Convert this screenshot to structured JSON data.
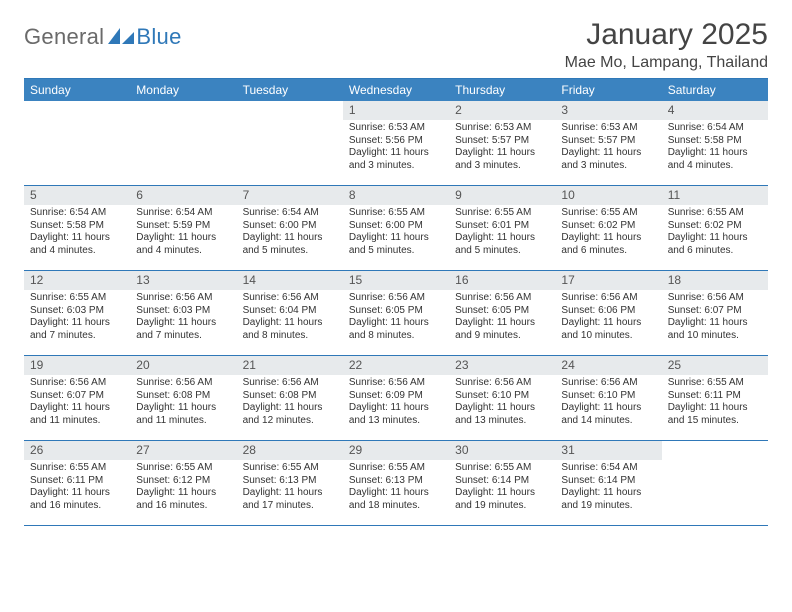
{
  "brand": {
    "general": "General",
    "blue": "Blue"
  },
  "title": {
    "month": "January 2025",
    "location": "Mae Mo, Lampang, Thailand"
  },
  "colors": {
    "accent": "#2f78b8",
    "header_bg": "#3b83c0",
    "header_text": "#ffffff",
    "daynum_bg": "#e7eaec",
    "text": "#333333",
    "logo_gray": "#6a6a6a"
  },
  "weekdays": [
    "Sunday",
    "Monday",
    "Tuesday",
    "Wednesday",
    "Thursday",
    "Friday",
    "Saturday"
  ],
  "weeks": [
    [
      {
        "n": "",
        "lines": []
      },
      {
        "n": "",
        "lines": []
      },
      {
        "n": "",
        "lines": []
      },
      {
        "n": "1",
        "lines": [
          "Sunrise: 6:53 AM",
          "Sunset: 5:56 PM",
          "Daylight: 11 hours and 3 minutes."
        ]
      },
      {
        "n": "2",
        "lines": [
          "Sunrise: 6:53 AM",
          "Sunset: 5:57 PM",
          "Daylight: 11 hours and 3 minutes."
        ]
      },
      {
        "n": "3",
        "lines": [
          "Sunrise: 6:53 AM",
          "Sunset: 5:57 PM",
          "Daylight: 11 hours and 3 minutes."
        ]
      },
      {
        "n": "4",
        "lines": [
          "Sunrise: 6:54 AM",
          "Sunset: 5:58 PM",
          "Daylight: 11 hours and 4 minutes."
        ]
      }
    ],
    [
      {
        "n": "5",
        "lines": [
          "Sunrise: 6:54 AM",
          "Sunset: 5:58 PM",
          "Daylight: 11 hours and 4 minutes."
        ]
      },
      {
        "n": "6",
        "lines": [
          "Sunrise: 6:54 AM",
          "Sunset: 5:59 PM",
          "Daylight: 11 hours and 4 minutes."
        ]
      },
      {
        "n": "7",
        "lines": [
          "Sunrise: 6:54 AM",
          "Sunset: 6:00 PM",
          "Daylight: 11 hours and 5 minutes."
        ]
      },
      {
        "n": "8",
        "lines": [
          "Sunrise: 6:55 AM",
          "Sunset: 6:00 PM",
          "Daylight: 11 hours and 5 minutes."
        ]
      },
      {
        "n": "9",
        "lines": [
          "Sunrise: 6:55 AM",
          "Sunset: 6:01 PM",
          "Daylight: 11 hours and 5 minutes."
        ]
      },
      {
        "n": "10",
        "lines": [
          "Sunrise: 6:55 AM",
          "Sunset: 6:02 PM",
          "Daylight: 11 hours and 6 minutes."
        ]
      },
      {
        "n": "11",
        "lines": [
          "Sunrise: 6:55 AM",
          "Sunset: 6:02 PM",
          "Daylight: 11 hours and 6 minutes."
        ]
      }
    ],
    [
      {
        "n": "12",
        "lines": [
          "Sunrise: 6:55 AM",
          "Sunset: 6:03 PM",
          "Daylight: 11 hours and 7 minutes."
        ]
      },
      {
        "n": "13",
        "lines": [
          "Sunrise: 6:56 AM",
          "Sunset: 6:03 PM",
          "Daylight: 11 hours and 7 minutes."
        ]
      },
      {
        "n": "14",
        "lines": [
          "Sunrise: 6:56 AM",
          "Sunset: 6:04 PM",
          "Daylight: 11 hours and 8 minutes."
        ]
      },
      {
        "n": "15",
        "lines": [
          "Sunrise: 6:56 AM",
          "Sunset: 6:05 PM",
          "Daylight: 11 hours and 8 minutes."
        ]
      },
      {
        "n": "16",
        "lines": [
          "Sunrise: 6:56 AM",
          "Sunset: 6:05 PM",
          "Daylight: 11 hours and 9 minutes."
        ]
      },
      {
        "n": "17",
        "lines": [
          "Sunrise: 6:56 AM",
          "Sunset: 6:06 PM",
          "Daylight: 11 hours and 10 minutes."
        ]
      },
      {
        "n": "18",
        "lines": [
          "Sunrise: 6:56 AM",
          "Sunset: 6:07 PM",
          "Daylight: 11 hours and 10 minutes."
        ]
      }
    ],
    [
      {
        "n": "19",
        "lines": [
          "Sunrise: 6:56 AM",
          "Sunset: 6:07 PM",
          "Daylight: 11 hours and 11 minutes."
        ]
      },
      {
        "n": "20",
        "lines": [
          "Sunrise: 6:56 AM",
          "Sunset: 6:08 PM",
          "Daylight: 11 hours and 11 minutes."
        ]
      },
      {
        "n": "21",
        "lines": [
          "Sunrise: 6:56 AM",
          "Sunset: 6:08 PM",
          "Daylight: 11 hours and 12 minutes."
        ]
      },
      {
        "n": "22",
        "lines": [
          "Sunrise: 6:56 AM",
          "Sunset: 6:09 PM",
          "Daylight: 11 hours and 13 minutes."
        ]
      },
      {
        "n": "23",
        "lines": [
          "Sunrise: 6:56 AM",
          "Sunset: 6:10 PM",
          "Daylight: 11 hours and 13 minutes."
        ]
      },
      {
        "n": "24",
        "lines": [
          "Sunrise: 6:56 AM",
          "Sunset: 6:10 PM",
          "Daylight: 11 hours and 14 minutes."
        ]
      },
      {
        "n": "25",
        "lines": [
          "Sunrise: 6:55 AM",
          "Sunset: 6:11 PM",
          "Daylight: 11 hours and 15 minutes."
        ]
      }
    ],
    [
      {
        "n": "26",
        "lines": [
          "Sunrise: 6:55 AM",
          "Sunset: 6:11 PM",
          "Daylight: 11 hours and 16 minutes."
        ]
      },
      {
        "n": "27",
        "lines": [
          "Sunrise: 6:55 AM",
          "Sunset: 6:12 PM",
          "Daylight: 11 hours and 16 minutes."
        ]
      },
      {
        "n": "28",
        "lines": [
          "Sunrise: 6:55 AM",
          "Sunset: 6:13 PM",
          "Daylight: 11 hours and 17 minutes."
        ]
      },
      {
        "n": "29",
        "lines": [
          "Sunrise: 6:55 AM",
          "Sunset: 6:13 PM",
          "Daylight: 11 hours and 18 minutes."
        ]
      },
      {
        "n": "30",
        "lines": [
          "Sunrise: 6:55 AM",
          "Sunset: 6:14 PM",
          "Daylight: 11 hours and 19 minutes."
        ]
      },
      {
        "n": "31",
        "lines": [
          "Sunrise: 6:54 AM",
          "Sunset: 6:14 PM",
          "Daylight: 11 hours and 19 minutes."
        ]
      },
      {
        "n": "",
        "lines": []
      }
    ]
  ]
}
